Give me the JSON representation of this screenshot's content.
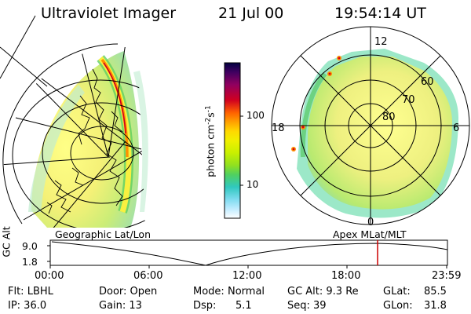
{
  "header": {
    "instrument": "Ultraviolet Imager",
    "date": "21 Jul 00",
    "time": "19:54:14 UT"
  },
  "colorbar": {
    "unit_label": "photon cm",
    "unit_exp1": "-2",
    "unit_mid": "s",
    "unit_exp2": "-1",
    "ticks": [
      "100",
      "10"
    ],
    "colors": [
      "#000040",
      "#400060",
      "#900060",
      "#d00020",
      "#ff6000",
      "#ffa000",
      "#ffd800",
      "#f0f000",
      "#c8f000",
      "#90e020",
      "#50d060",
      "#30c8c0",
      "#80dcf0",
      "#c0ecff",
      "#ffffff"
    ]
  },
  "polar_plot": {
    "lat_labels": [
      "80",
      "70",
      "60"
    ],
    "mlt_labels": [
      "12",
      "18",
      "6",
      "0"
    ]
  },
  "timeline": {
    "ylabel": "GC Alt",
    "yticks": [
      "9.0",
      "1.8"
    ],
    "left_title": "Geographic Lat/Lon",
    "right_title": "Apex MLat/MLT",
    "xticks": [
      "00:00",
      "06:00",
      "12:00",
      "18:00",
      "23:59"
    ],
    "marker_color": "#cc0000"
  },
  "footer": {
    "filter": "Flt: LBHL",
    "door": "Door: Open",
    "mode_label": "Mode:",
    "mode_value": "Normal",
    "gc_alt": "GC Alt: 9.3 Re",
    "glat_label": "GLat:",
    "glat_value": "85.5",
    "ip": "IP: 36.0",
    "gain": "Gain: 13",
    "dsp_label": "Dsp:",
    "dsp_value": "5.1",
    "seq": "Seq: 39",
    "glon_label": "GLon:",
    "glon_value": "31.8"
  }
}
